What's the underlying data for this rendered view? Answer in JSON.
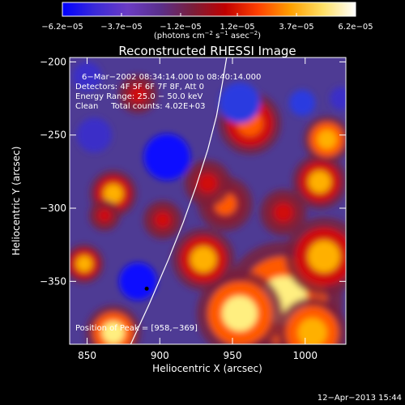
{
  "chart_data": {
    "type": "heatmap",
    "title": "Reconstructed RHESSI Image",
    "xlabel": "Heliocentric X (arcsec)",
    "ylabel": "Heliocentric Y (arcsec)",
    "xlim": [
      838,
      1028
    ],
    "ylim": [
      -393,
      -197
    ],
    "x_ticks": [
      850,
      900,
      950,
      1000
    ],
    "y_ticks": [
      -350,
      -300,
      -250,
      -200
    ],
    "x_tick_labels": [
      "850",
      "900",
      "950",
      "1000"
    ],
    "y_tick_labels": [
      "−350",
      "−300",
      "−250",
      "−200"
    ],
    "colorbar": {
      "range": [
        -6.2e-05,
        6.2e-05
      ],
      "tick_values": [
        -6.2e-05,
        -3.7e-05,
        -1.2e-05,
        1.2e-05,
        3.7e-05,
        6.2e-05
      ],
      "tick_labels": [
        "−6.2e−05",
        "−3.7e−05",
        "−1.2e−05",
        "1.2e−05",
        "3.7e−05",
        "6.2e−05"
      ],
      "unit_main": "(photons cm",
      "unit_sup1": "−2",
      "unit_mid": " s",
      "unit_sup2": "−1",
      "unit_mid2": " asec",
      "unit_sup3": "−2",
      "unit_end": ")",
      "stops": [
        "#0000ff",
        "#3b2ad8",
        "#6b3cc4",
        "#5a2f8c",
        "#7a1e3a",
        "#c00000",
        "#ff4000",
        "#ffa000",
        "#ffe066",
        "#ffffff"
      ]
    },
    "info_lines": [
      "6−Mar−2002 08:34:14.000 to 08:40:14.000",
      "Detectors: 4F 5F 6F 7F 8F, Att 0",
      "Energy Range: 25.0 − 50.0 keV",
      "Clean     Total counts: 4.02E+03"
    ],
    "peak_label": "Position of Peak = [958,−369]",
    "peak": [
      958,
      -369
    ],
    "minimum_marker": [
      891,
      -355
    ],
    "limb_curve": [
      [
        880,
        -393
      ],
      [
        893,
        -365
      ],
      [
        906,
        -335
      ],
      [
        916,
        -310
      ],
      [
        925,
        -285
      ],
      [
        933,
        -260
      ],
      [
        939,
        -237
      ],
      [
        943,
        -215
      ],
      [
        946,
        -197
      ]
    ],
    "blobs": [
      {
        "x": 985,
        "y": -363,
        "r": 30,
        "v": 0.95
      },
      {
        "x": 955,
        "y": -372,
        "r": 22,
        "v": 0.85
      },
      {
        "x": 1005,
        "y": -385,
        "r": 18,
        "v": 0.8
      },
      {
        "x": 1013,
        "y": -333,
        "r": 20,
        "v": 0.7
      },
      {
        "x": 930,
        "y": -335,
        "r": 16,
        "v": 0.7
      },
      {
        "x": 945,
        "y": -297,
        "r": 14,
        "v": 0.55
      },
      {
        "x": 962,
        "y": -242,
        "r": 16,
        "v": 0.65
      },
      {
        "x": 1010,
        "y": -282,
        "r": 14,
        "v": 0.75
      },
      {
        "x": 1015,
        "y": -253,
        "r": 12,
        "v": 0.8
      },
      {
        "x": 985,
        "y": -303,
        "r": 12,
        "v": 0.4
      },
      {
        "x": 933,
        "y": -283,
        "r": 12,
        "v": 0.45
      },
      {
        "x": 868,
        "y": -385,
        "r": 14,
        "v": 0.9
      },
      {
        "x": 848,
        "y": -338,
        "r": 10,
        "v": 0.7
      },
      {
        "x": 868,
        "y": -290,
        "r": 12,
        "v": 0.7
      },
      {
        "x": 862,
        "y": -305,
        "r": 8,
        "v": 0.4
      },
      {
        "x": 885,
        "y": -222,
        "r": 10,
        "v": 0.45
      },
      {
        "x": 902,
        "y": -308,
        "r": 10,
        "v": 0.5
      },
      {
        "x": 905,
        "y": -265,
        "r": 16,
        "v": -0.9
      },
      {
        "x": 955,
        "y": -228,
        "r": 14,
        "v": -0.85
      },
      {
        "x": 998,
        "y": -228,
        "r": 9,
        "v": -0.8
      },
      {
        "x": 885,
        "y": -350,
        "r": 13,
        "v": -1.0
      },
      {
        "x": 855,
        "y": -250,
        "r": 12,
        "v": -0.6
      },
      {
        "x": 850,
        "y": -210,
        "r": 10,
        "v": -0.5
      },
      {
        "x": 1025,
        "y": -225,
        "r": 8,
        "v": -0.5
      }
    ]
  },
  "footer": {
    "timestamp": "12−Apr−2013 15:44"
  }
}
